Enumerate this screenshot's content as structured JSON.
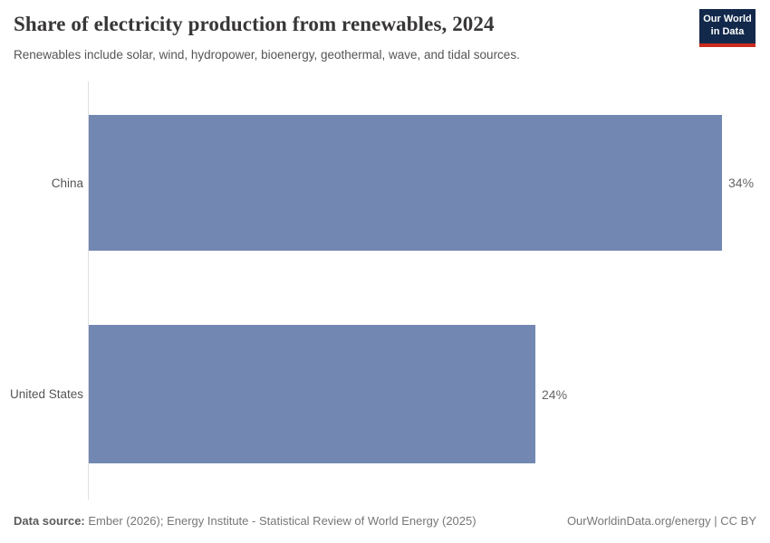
{
  "header": {
    "title": "Share of electricity production from renewables, 2024",
    "subtitle": "Renewables include solar, wind, hydropower, bioenergy, geothermal, wave, and tidal sources.",
    "logo": {
      "line1": "Our World",
      "line2": "in Data",
      "bg_color": "#12294b",
      "accent_color": "#cc2a1d"
    }
  },
  "chart_data": {
    "type": "bar",
    "orientation": "horizontal",
    "title": "Share of electricity production from renewables, 2024",
    "categories": [
      "China",
      "United States"
    ],
    "values": [
      34,
      24
    ],
    "value_labels": [
      "34%",
      "24%"
    ],
    "unit": "%",
    "xlabel": "",
    "ylabel": "",
    "xlim": [
      0,
      34
    ],
    "grid": false,
    "legend": false,
    "bar_color": "#7287b1",
    "axis_line_color": "#e0e0e0"
  },
  "footer": {
    "data_source_label": "Data source:",
    "data_source_value": " Ember (2026); Energy Institute - Statistical Review of World Energy (2025)",
    "link": "OurWorldinData.org/energy | CC BY"
  }
}
